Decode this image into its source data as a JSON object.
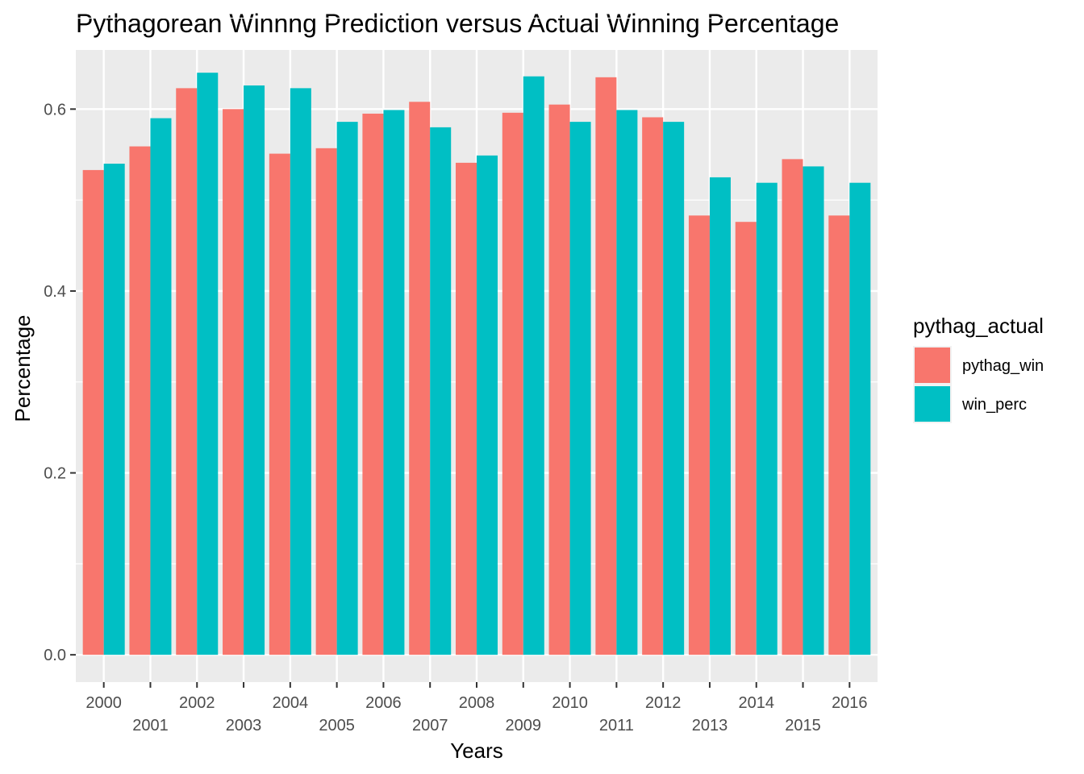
{
  "chart_data": {
    "type": "bar",
    "title": "Pythagorean Winnng Prediction versus Actual Winning Percentage",
    "xlabel": "Years",
    "ylabel": "Percentage",
    "categories": [
      "2000",
      "2001",
      "2002",
      "2003",
      "2004",
      "2005",
      "2006",
      "2007",
      "2008",
      "2009",
      "2010",
      "2011",
      "2012",
      "2013",
      "2014",
      "2015",
      "2016"
    ],
    "series": [
      {
        "name": "pythag_win",
        "color": "#F8766D",
        "values": [
          0.533,
          0.559,
          0.623,
          0.6,
          0.551,
          0.557,
          0.595,
          0.608,
          0.541,
          0.596,
          0.605,
          0.635,
          0.591,
          0.483,
          0.476,
          0.545,
          0.483
        ]
      },
      {
        "name": "win_perc",
        "color": "#00BFC4",
        "values": [
          0.54,
          0.59,
          0.64,
          0.626,
          0.623,
          0.586,
          0.599,
          0.58,
          0.549,
          0.636,
          0.586,
          0.599,
          0.586,
          0.525,
          0.519,
          0.537,
          0.519
        ]
      }
    ],
    "ylim": [
      -0.03,
      0.665
    ],
    "yticks": [
      "0.0",
      "0.2",
      "0.4",
      "0.6"
    ],
    "legend": {
      "title": "pythag_actual",
      "position": "right"
    },
    "grid": true,
    "panel_background": "#EBEBEB",
    "grid_color": "#FFFFFF"
  }
}
